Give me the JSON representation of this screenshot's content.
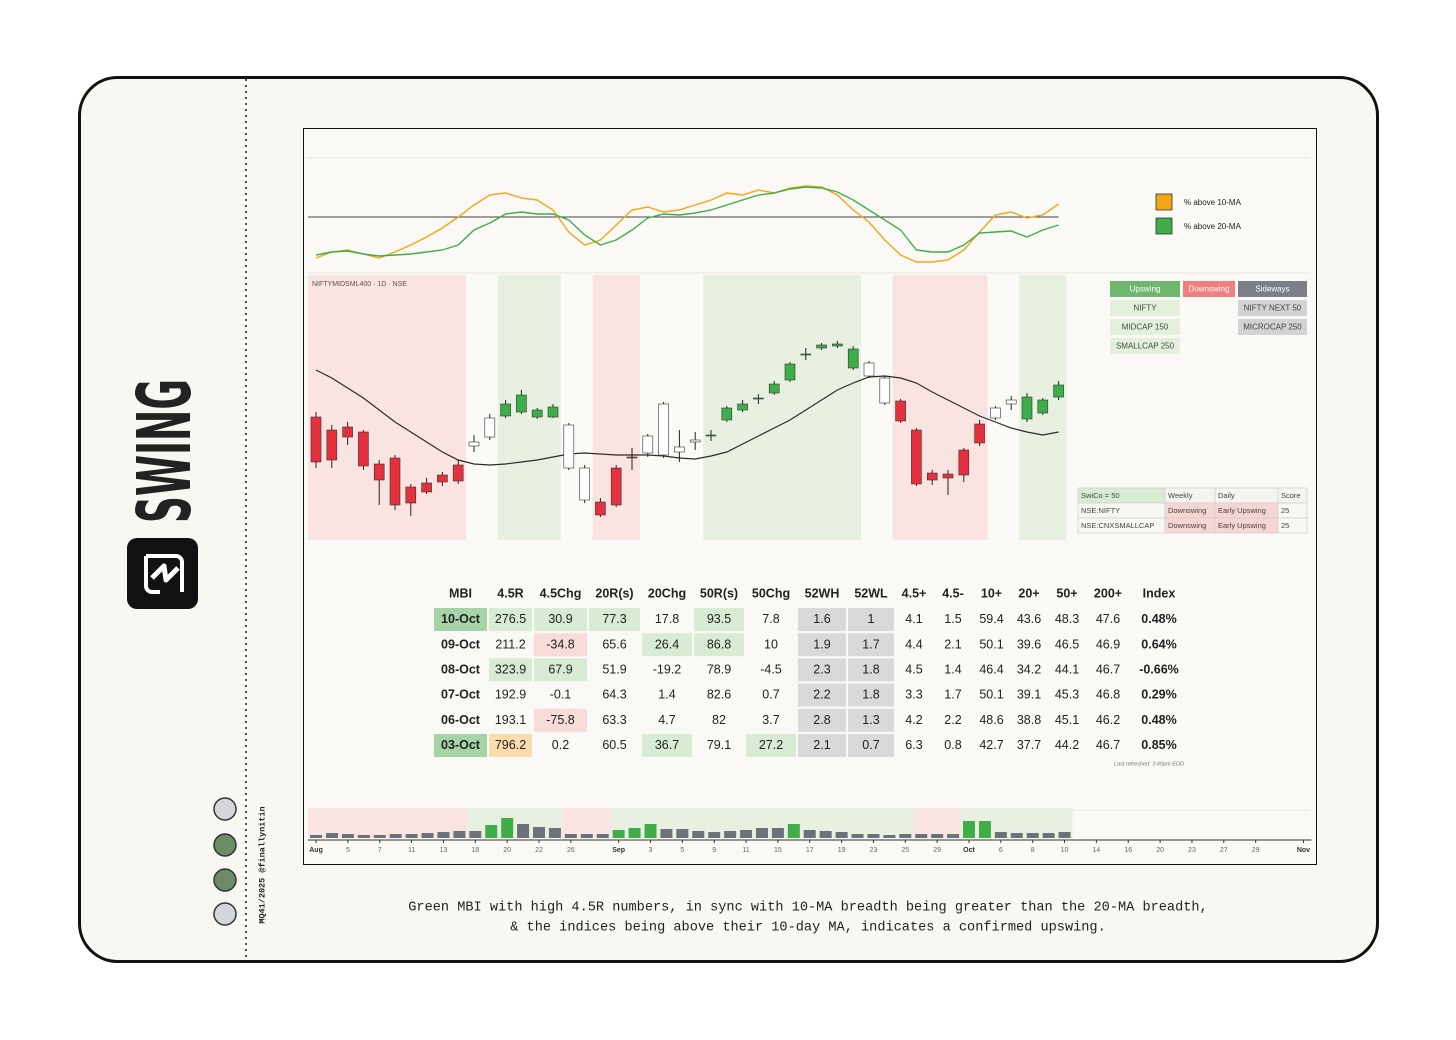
{
  "brand": {
    "name": "SWING",
    "handle": "MQ41/2025 @finallynitin"
  },
  "caption": [
    "Green MBI with high 4.5R numbers, in sync with 10-MA breadth being greater than the 20-MA breadth,",
    "& the indices being above their 10-day MA, indicates a confirmed upswing."
  ],
  "chart_data": [
    {
      "type": "line",
      "xlim": [
        -0.5,
        47.5
      ],
      "ylim": [
        0,
        114
      ],
      "hline": 55,
      "legend": "right",
      "series": [
        {
          "name": "% above 10-MA",
          "color": "#f2a516",
          "values": [
            14,
            20,
            22,
            18,
            14,
            20,
            27,
            35,
            44,
            55,
            67,
            77,
            79,
            74,
            72,
            62,
            40,
            27,
            32,
            47,
            62,
            65,
            60,
            62,
            67,
            72,
            79,
            77,
            82,
            79,
            84,
            86,
            85,
            77,
            62,
            50,
            32,
            17,
            10,
            10,
            12,
            22,
            40,
            57,
            60,
            54,
            57,
            68
          ]
        },
        {
          "name": "% above 20-MA",
          "color": "#3fae49",
          "values": [
            17,
            20,
            21,
            18,
            16,
            17,
            18,
            20,
            22,
            27,
            42,
            49,
            58,
            60,
            58,
            58,
            52,
            37,
            27,
            32,
            42,
            54,
            58,
            57,
            59,
            62,
            67,
            72,
            77,
            79,
            83,
            85,
            84,
            80,
            72,
            62,
            52,
            42,
            22,
            20,
            20,
            27,
            39,
            40,
            41,
            35,
            42,
            47
          ]
        }
      ]
    },
    {
      "type": "candlestick",
      "title": "NIFTYMIDSML400 · 1D · NSE",
      "xlim": [
        -0.5,
        47.5
      ],
      "ylim": [
        0,
        265
      ],
      "bands": [
        {
          "from": 0,
          "to": 9,
          "color": "#fae4e1",
          "candle": "#e5313e"
        },
        {
          "from": 10,
          "to": 11,
          "color": "#fbfaf6",
          "candle": "#ffffff"
        },
        {
          "from": 12,
          "to": 15,
          "color": "#e8f1e1",
          "candle": "#3dae4a"
        },
        {
          "from": 16,
          "to": 17,
          "color": "#fbfaf6",
          "candle": "#ffffff"
        },
        {
          "from": 18,
          "to": 20,
          "color": "#fae4e1",
          "candle": "#e5313e"
        },
        {
          "from": 21,
          "to": 24,
          "color": "#fbfaf6",
          "candle": "#ffffff"
        },
        {
          "from": 25,
          "to": 34,
          "color": "#e8f1e1",
          "candle": "#3dae4a"
        },
        {
          "from": 35,
          "to": 36,
          "color": "#fbfaf6",
          "candle": "#ffffff"
        },
        {
          "from": 37,
          "to": 42,
          "color": "#fae4e1",
          "candle": "#e5313e"
        },
        {
          "from": 43,
          "to": 44,
          "color": "#fbfaf6",
          "candle": "#ffffff"
        },
        {
          "from": 45,
          "to": 47,
          "color": "#e8f1e1",
          "candle": "#3dae4a"
        }
      ],
      "ohlc": [
        [
          123,
          128,
          72,
          78
        ],
        [
          110,
          115,
          72,
          80
        ],
        [
          113,
          118,
          95,
          103
        ],
        [
          108,
          110,
          70,
          74
        ],
        [
          76,
          80,
          35,
          60
        ],
        [
          82,
          85,
          30,
          35
        ],
        [
          53,
          56,
          24,
          37
        ],
        [
          57,
          62,
          46,
          48
        ],
        [
          65,
          68,
          54,
          58
        ],
        [
          75,
          80,
          56,
          59
        ],
        [
          94,
          105,
          88,
          98
        ],
        [
          103,
          126,
          100,
          122
        ],
        [
          124,
          140,
          122,
          136
        ],
        [
          128,
          150,
          126,
          145
        ],
        [
          123,
          132,
          121,
          130
        ],
        [
          123,
          136,
          122,
          133
        ],
        [
          115,
          117,
          70,
          72
        ],
        [
          72,
          75,
          37,
          40
        ],
        [
          38,
          42,
          23,
          25
        ],
        [
          35,
          75,
          33,
          72
        ],
        [
          83,
          92,
          70,
          82
        ],
        [
          87,
          106,
          83,
          104
        ],
        [
          85,
          138,
          82,
          136
        ],
        [
          88,
          110,
          78,
          93
        ],
        [
          98,
          108,
          90,
          100
        ],
        [
          104,
          110,
          99,
          105
        ],
        [
          120,
          134,
          118,
          132
        ],
        [
          130,
          140,
          128,
          136
        ],
        [
          141,
          146,
          136,
          142
        ],
        [
          147,
          159,
          145,
          156
        ],
        [
          160,
          178,
          158,
          176
        ],
        [
          185,
          192,
          180,
          186
        ],
        [
          192,
          197,
          190,
          195
        ],
        [
          194,
          199,
          192,
          196
        ],
        [
          191,
          194,
          170,
          172
        ],
        [
          177,
          179,
          162,
          164
        ],
        [
          162,
          164,
          135,
          137
        ],
        [
          139,
          141,
          117,
          119
        ],
        [
          110,
          112,
          54,
          56
        ],
        [
          67,
          70,
          55,
          60
        ],
        [
          66,
          70,
          45,
          62
        ],
        [
          65,
          92,
          58,
          90
        ],
        [
          97,
          120,
          94,
          116
        ],
        [
          122,
          134,
          120,
          132
        ],
        [
          136,
          144,
          130,
          140
        ],
        [
          121,
          147,
          118,
          143
        ],
        [
          127,
          142,
          125,
          140
        ],
        [
          143,
          159,
          140,
          155
        ]
      ],
      "overlay": {
        "color": "#2b2b2b",
        "values": [
          170,
          162,
          152,
          142,
          130,
          118,
          108,
          98,
          88,
          80,
          76,
          75,
          76,
          78,
          80,
          83,
          86,
          87,
          86,
          85,
          85,
          85,
          84,
          82,
          81,
          84,
          88,
          96,
          104,
          112,
          120,
          130,
          140,
          150,
          157,
          163,
          164,
          162,
          157,
          148,
          140,
          132,
          124,
          118,
          112,
          108,
          105,
          108
        ]
      }
    },
    {
      "type": "bar",
      "xlim": [
        -0.5,
        62.5
      ],
      "ylim": [
        0,
        30
      ],
      "bands": [
        {
          "from": 0,
          "to": 9,
          "color": "#fae4e1"
        },
        {
          "from": 10,
          "to": 15,
          "color": "#e8f1e1"
        },
        {
          "from": 16,
          "to": 18,
          "color": "#fae4e1"
        },
        {
          "from": 19,
          "to": 37,
          "color": "#e8f1e1"
        },
        {
          "from": 38,
          "to": 40,
          "color": "#fae4e1"
        },
        {
          "from": 41,
          "to": 47,
          "color": "#e8f1e1"
        }
      ],
      "values": [
        3,
        5,
        4,
        3,
        3,
        4,
        4,
        5,
        6,
        7,
        7,
        13,
        20,
        14,
        11,
        10,
        4,
        4,
        4,
        8,
        10,
        14,
        9,
        9,
        7,
        6,
        7,
        8,
        10,
        10,
        14,
        8,
        7,
        6,
        4,
        4,
        3,
        4,
        4,
        4,
        4,
        17,
        17,
        6,
        5,
        5,
        5,
        6
      ],
      "colors": [
        "#6d717a",
        "#6d717a",
        "#6d717a",
        "#6d717a",
        "#6d717a",
        "#6d717a",
        "#6d717a",
        "#6d717a",
        "#6d717a",
        "#6d717a",
        "#6d717a",
        "#3fae49",
        "#3fae49",
        "#6d717a",
        "#6d717a",
        "#6d717a",
        "#6d717a",
        "#6d717a",
        "#6d717a",
        "#3fae49",
        "#3fae49",
        "#3fae49",
        "#6d717a",
        "#6d717a",
        "#6d717a",
        "#6d717a",
        "#6d717a",
        "#6d717a",
        "#6d717a",
        "#6d717a",
        "#3fae49",
        "#6d717a",
        "#6d717a",
        "#6d717a",
        "#6d717a",
        "#6d717a",
        "#6d717a",
        "#6d717a",
        "#6d717a",
        "#6d717a",
        "#6d717a",
        "#3fae49",
        "#3fae49",
        "#6d717a",
        "#6d717a",
        "#6d717a",
        "#6d717a",
        "#6d717a"
      ],
      "xticks": [
        {
          "value": 0,
          "label": "Aug"
        },
        {
          "value": 2,
          "label": "5"
        },
        {
          "value": 4,
          "label": "7"
        },
        {
          "value": 6,
          "label": "11"
        },
        {
          "value": 8,
          "label": "13"
        },
        {
          "value": 10,
          "label": "18"
        },
        {
          "value": 12,
          "label": "20"
        },
        {
          "value": 14,
          "label": "22"
        },
        {
          "value": 16,
          "label": "26"
        },
        {
          "value": 19,
          "label": "Sep"
        },
        {
          "value": 21,
          "label": "3"
        },
        {
          "value": 23,
          "label": "5"
        },
        {
          "value": 25,
          "label": "9"
        },
        {
          "value": 27,
          "label": "11"
        },
        {
          "value": 29,
          "label": "15"
        },
        {
          "value": 31,
          "label": "17"
        },
        {
          "value": 33,
          "label": "19"
        },
        {
          "value": 35,
          "label": "23"
        },
        {
          "value": 37,
          "label": "25"
        },
        {
          "value": 39,
          "label": "29"
        },
        {
          "value": 41,
          "label": "Oct"
        },
        {
          "value": 43,
          "label": "6"
        },
        {
          "value": 45,
          "label": "8"
        },
        {
          "value": 47,
          "label": "10"
        },
        {
          "value": 49,
          "label": "14"
        },
        {
          "value": 51,
          "label": "16"
        },
        {
          "value": 53,
          "label": "20"
        },
        {
          "value": 55,
          "label": "23"
        },
        {
          "value": 57,
          "label": "27"
        },
        {
          "value": 59,
          "label": "29"
        },
        {
          "value": 62,
          "label": "Nov"
        }
      ]
    }
  ],
  "regime_board": {
    "columns": [
      {
        "title": "Upswing",
        "color": "#6fb66f",
        "item_color": "#e3f0dc",
        "items": [
          "NIFTY",
          "MIDCAP 150",
          "SMALLCAP 250"
        ]
      },
      {
        "title": "Downswing",
        "color": "#f07f7f",
        "items": []
      },
      {
        "title": "Sideways",
        "color": "#7c7f88",
        "item_color": "#d3d3d3",
        "items": [
          "NIFTY NEXT 50",
          "MICROCAP 250"
        ]
      }
    ]
  },
  "swico": {
    "header": [
      "SwiCo = 50",
      "Weekly",
      "Daily",
      "Score"
    ],
    "rows": [
      [
        "NSE:NIFTY",
        "Downswing",
        "Early Upswing",
        "25"
      ],
      [
        "NSE:CNXSMALLCAP",
        "Downswing",
        "Early Upswing",
        "25"
      ]
    ]
  },
  "mbi_table": {
    "header": [
      "MBI",
      "4.5R",
      "4.5Chg",
      "20R(s)",
      "20Chg",
      "50R(s)",
      "50Chg",
      "52WH",
      "52WL",
      "4.5+",
      "4.5-",
      "10+",
      "20+",
      "50+",
      "200+",
      "Index"
    ],
    "rows": [
      [
        "10-Oct",
        "276.5",
        "30.9",
        "77.3",
        "17.8",
        "93.5",
        "7.8",
        "1.6",
        "1",
        "4.1",
        "1.5",
        "59.4",
        "43.6",
        "48.3",
        "47.6",
        "0.48%"
      ],
      [
        "09-Oct",
        "211.2",
        "-34.8",
        "65.6",
        "26.4",
        "86.8",
        "10",
        "1.9",
        "1.7",
        "4.4",
        "2.1",
        "50.1",
        "39.6",
        "46.5",
        "46.9",
        "0.64%"
      ],
      [
        "08-Oct",
        "323.9",
        "67.9",
        "51.9",
        "-19.2",
        "78.9",
        "-4.5",
        "2.3",
        "1.8",
        "4.5",
        "1.4",
        "46.4",
        "34.2",
        "44.1",
        "46.7",
        "-0.66%"
      ],
      [
        "07-Oct",
        "192.9",
        "-0.1",
        "64.3",
        "1.4",
        "82.6",
        "0.7",
        "2.2",
        "1.8",
        "3.3",
        "1.7",
        "50.1",
        "39.1",
        "45.3",
        "46.8",
        "0.29%"
      ],
      [
        "06-Oct",
        "193.1",
        "-75.8",
        "63.3",
        "4.7",
        "82",
        "3.7",
        "2.8",
        "1.3",
        "4.2",
        "2.2",
        "48.6",
        "38.8",
        "45.1",
        "46.2",
        "0.48%"
      ],
      [
        "03-Oct",
        "796.2",
        "0.2",
        "60.5",
        "36.7",
        "79.1",
        "27.2",
        "2.1",
        "0.7",
        "6.3",
        "0.8",
        "42.7",
        "37.7",
        "44.2",
        "46.7",
        "0.85%"
      ]
    ],
    "shade": [
      "Gggg-g-xx-------",
      "--r-gg-xx-------",
      "-gg----xx-------",
      "-------xx-------",
      "--r----xx-------",
      "Go--g-gxx-------"
    ],
    "shade_colors": {
      "G": "#a7d4a6",
      "g": "#d8ebd3",
      "r": "#f8dcd9",
      "o": "#fbdcae",
      "x": "#d9d9d9"
    },
    "note": "Last refreshed: 3:40pm EOD"
  }
}
